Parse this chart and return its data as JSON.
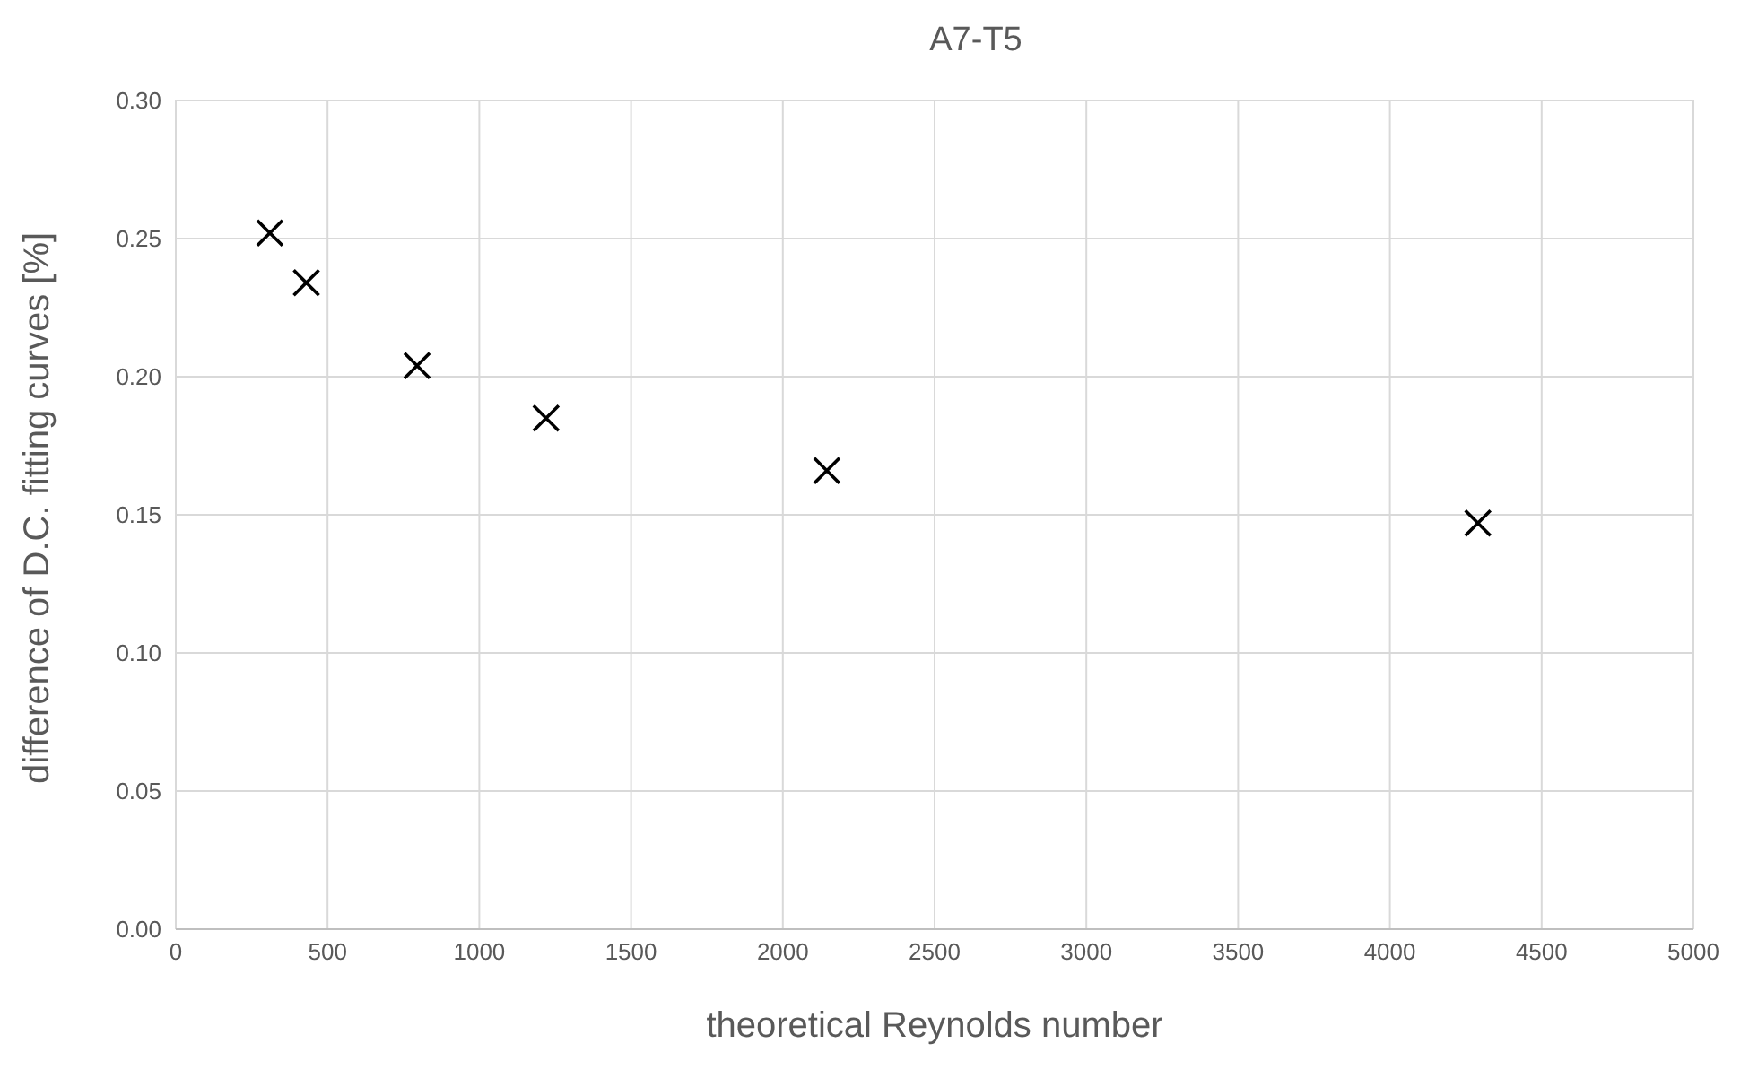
{
  "chart_data": {
    "type": "scatter",
    "title": "A7-T5",
    "xlabel": "theoretical Reynolds number",
    "ylabel": "difference of D.C. fitting curves [%]",
    "x": [
      310,
      430,
      795,
      1220,
      2145,
      4290
    ],
    "series": [
      {
        "color": "#000000",
        "values": [
          0.252,
          0.234,
          0.204,
          0.185,
          0.166,
          0.147
        ]
      }
    ],
    "xlim": [
      0,
      5000
    ],
    "xticks": [
      0,
      500,
      1000,
      1500,
      2000,
      2500,
      3000,
      3500,
      4000,
      4500,
      5000
    ],
    "ylim": [
      0,
      0.3
    ],
    "yticks": [
      {
        "value": 0,
        "label": "0.00"
      },
      0.05,
      {
        "value": 0.1,
        "label": "0.10"
      },
      0.15,
      {
        "value": 0.2,
        "label": "0.20"
      },
      0.25,
      {
        "value": 0.3,
        "label": "0.30"
      }
    ],
    "grid": true,
    "marker": "cross"
  }
}
